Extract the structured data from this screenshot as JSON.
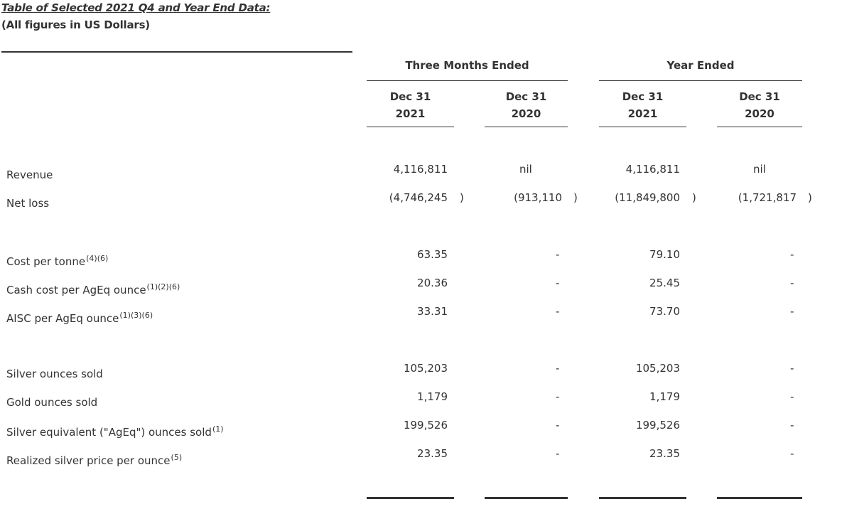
{
  "title_line1": "Table of Selected 2021 Q4 and Year End Data:",
  "title_line2": "(All figures in US Dollars)",
  "group_headers": [
    "Three Months Ended",
    "Year Ended"
  ],
  "column_headers": [
    {
      "line1": "Dec 31",
      "line2": "2021"
    },
    {
      "line1": "Dec 31",
      "line2": "2020"
    },
    {
      "line1": "Dec 31",
      "line2": "2021"
    },
    {
      "line1": "Dec 31",
      "line2": "2020"
    }
  ],
  "rows": [
    {
      "label": "Revenue",
      "sup": "",
      "values": [
        "4,116,811",
        "nil",
        "4,116,811",
        "nil"
      ]
    },
    {
      "label": "Net loss",
      "sup": "",
      "values": [
        "(4,746,245",
        "(913,110",
        "(11,849,800",
        "(1,721,817"
      ],
      "close": ")"
    },
    {
      "label": "Cost per tonne",
      "sup": "(4)(6)",
      "values": [
        "63.35",
        "-",
        "79.10",
        "-"
      ]
    },
    {
      "label": "Cash cost per AgEq ounce",
      "sup": "(1)(2)(6)",
      "values": [
        "20.36",
        "-",
        "25.45",
        "-"
      ]
    },
    {
      "label": "AISC per AgEq ounce",
      "sup": "(1)(3)(6)",
      "values": [
        "33.31",
        "-",
        "73.70",
        "-"
      ]
    },
    {
      "label": "Silver ounces sold",
      "sup": "",
      "values": [
        "105,203",
        "-",
        "105,203",
        "-"
      ]
    },
    {
      "label": "Gold ounces sold",
      "sup": "",
      "values": [
        "1,179",
        "-",
        "1,179",
        "-"
      ]
    },
    {
      "label": "Silver equivalent (\"AgEq\") ounces sold",
      "sup": "(1)",
      "values": [
        "199,526",
        "-",
        "199,526",
        "-"
      ]
    },
    {
      "label": "Realized silver price per ounce",
      "sup": "(5)",
      "values": [
        "23.35",
        "-",
        "23.35",
        "-"
      ]
    }
  ]
}
